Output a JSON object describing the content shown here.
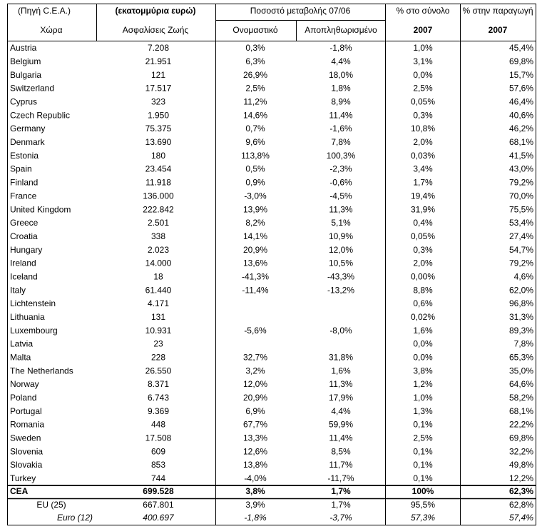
{
  "header": {
    "row1": [
      "(Πηγή C.E.A.)",
      "(εκατομμύρια ευρώ)",
      "Ποσοστό μεταβολής 07/06",
      "% στο σύνολο",
      "% στην παραγωγή"
    ],
    "row2": [
      "Χώρα",
      "Ασφαλίσεις Ζωής",
      "Ονομαστικό",
      "Αποπληθωρισμένο",
      "2007",
      "2007"
    ]
  },
  "table": {
    "rows": [
      [
        "Austria",
        "7.208",
        "0,3%",
        "-1,8%",
        "1,0%",
        "45,4%"
      ],
      [
        "Belgium",
        "21.951",
        "6,3%",
        "4,4%",
        "3,1%",
        "69,8%"
      ],
      [
        "Bulgaria",
        "121",
        "26,9%",
        "18,0%",
        "0,0%",
        "15,7%"
      ],
      [
        "Switzerland",
        "17.517",
        "2,5%",
        "1,8%",
        "2,5%",
        "57,6%"
      ],
      [
        "Cyprus",
        "323",
        "11,2%",
        "8,9%",
        "0,05%",
        "46,4%"
      ],
      [
        "Czech Republic",
        "1.950",
        "14,6%",
        "11,4%",
        "0,3%",
        "40,6%"
      ],
      [
        "Germany",
        "75.375",
        "0,7%",
        "-1,6%",
        "10,8%",
        "46,2%"
      ],
      [
        "Denmark",
        "13.690",
        "9,6%",
        "7,8%",
        "2,0%",
        "68,1%"
      ],
      [
        "Estonia",
        "180",
        "113,8%",
        "100,3%",
        "0,03%",
        "41,5%"
      ],
      [
        "Spain",
        "23.454",
        "0,5%",
        "-2,3%",
        "3,4%",
        "43,0%"
      ],
      [
        "Finland",
        "11.918",
        "0,9%",
        "-0,6%",
        "1,7%",
        "79,2%"
      ],
      [
        "France",
        "136.000",
        "-3,0%",
        "-4,5%",
        "19,4%",
        "70,0%"
      ],
      [
        "United Kingdom",
        "222.842",
        "13,9%",
        "11,3%",
        "31,9%",
        "75,5%"
      ],
      [
        "Greece",
        "2.501",
        "8,2%",
        "5,1%",
        "0,4%",
        "53,4%"
      ],
      [
        "Croatia",
        "338",
        "14,1%",
        "10,9%",
        "0,05%",
        "27,4%"
      ],
      [
        "Hungary",
        "2.023",
        "20,9%",
        "12,0%",
        "0,3%",
        "54,7%"
      ],
      [
        "Ireland",
        "14.000",
        "13,6%",
        "10,5%",
        "2,0%",
        "79,2%"
      ],
      [
        "Iceland",
        "18",
        "-41,3%",
        "-43,3%",
        "0,00%",
        "4,6%"
      ],
      [
        "Italy",
        "61.440",
        "-11,4%",
        "-13,2%",
        "8,8%",
        "62,0%"
      ],
      [
        "Lichtenstein",
        "4.171",
        null,
        null,
        "0,6%",
        "96,8%"
      ],
      [
        "Lithuania",
        "131",
        null,
        null,
        "0,02%",
        "31,3%"
      ],
      [
        "Luxembourg",
        "10.931",
        "-5,6%",
        "-8,0%",
        "1,6%",
        "89,3%"
      ],
      [
        "Latvia",
        "23",
        null,
        null,
        "0,0%",
        "7,8%"
      ],
      [
        "Malta",
        "228",
        "32,7%",
        "31,8%",
        "0,0%",
        "65,3%"
      ],
      [
        "The Netherlands",
        "26.550",
        "3,2%",
        "1,6%",
        "3,8%",
        "35,0%"
      ],
      [
        "Norway",
        "8.371",
        "12,0%",
        "11,3%",
        "1,2%",
        "64,6%"
      ],
      [
        "Poland",
        "6.743",
        "20,9%",
        "17,9%",
        "1,0%",
        "58,2%"
      ],
      [
        "Portugal",
        "9.369",
        "6,9%",
        "4,4%",
        "1,3%",
        "68,1%"
      ],
      [
        "Romania",
        "448",
        "67,7%",
        "59,9%",
        "0,1%",
        "22,2%"
      ],
      [
        "Sweden",
        "17.508",
        "13,3%",
        "11,4%",
        "2,5%",
        "69,8%"
      ],
      [
        "Slovenia",
        "609",
        "12,6%",
        "8,5%",
        "0,1%",
        "32,2%"
      ],
      [
        "Slovakia",
        "853",
        "13,8%",
        "11,7%",
        "0,1%",
        "49,8%"
      ],
      [
        "Turkey",
        "744",
        "-4,0%",
        "-11,7%",
        "0,1%",
        "12,2%"
      ]
    ]
  },
  "totals": [
    [
      "CEA",
      "699.528",
      "3,8%",
      "1,7%",
      "100%",
      "62,3%"
    ],
    [
      "EU (25)",
      "667.801",
      "3,9%",
      "1,7%",
      "95,5%",
      "62,8%"
    ],
    [
      "Euro (12)",
      "400.697",
      "-1,8%",
      "-3,7%",
      "57,3%",
      "57,4%"
    ]
  ]
}
